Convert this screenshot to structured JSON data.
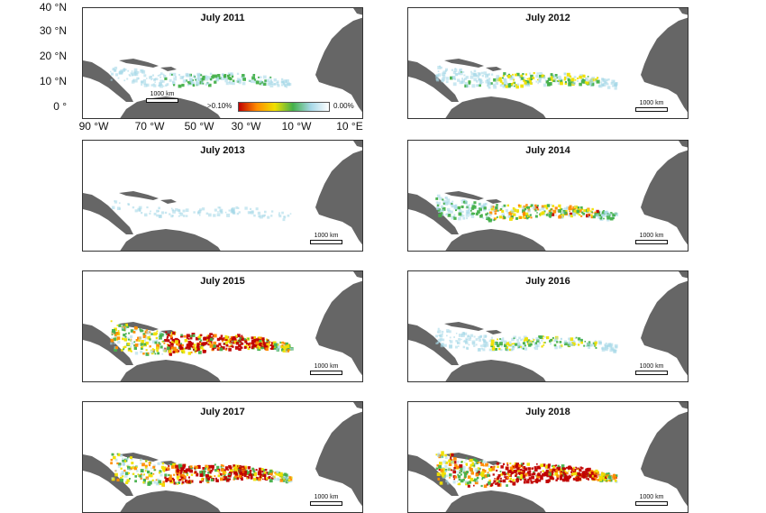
{
  "figure": {
    "lat_labels": [
      "40 °N",
      "30 °N",
      "20 °N",
      "10 °N",
      "0 °"
    ],
    "lon_labels": [
      "90 °W",
      "70 °W",
      "50 °W",
      "30 °W",
      "10 °W",
      "10 °E"
    ],
    "legend": {
      "high_label": ">0.10%",
      "low_label": "0.00%"
    },
    "scale_label": "1000 km",
    "colors": {
      "land": "#666666",
      "legend_stops": [
        "#c00000",
        "#ff8c00",
        "#f0e000",
        "#44b04a",
        "#a6d8e8",
        "#ffffff"
      ]
    }
  },
  "panels": [
    {
      "title": "July 2011",
      "density": 0.35
    },
    {
      "title": "July 2012",
      "density": 0.45
    },
    {
      "title": "July 2013",
      "density": 0.05
    },
    {
      "title": "July 2014",
      "density": 0.55
    },
    {
      "title": "July 2015",
      "density": 0.9
    },
    {
      "title": "July 2016",
      "density": 0.4
    },
    {
      "title": "July 2017",
      "density": 0.85
    },
    {
      "title": "July 2018",
      "density": 1.0
    }
  ]
}
